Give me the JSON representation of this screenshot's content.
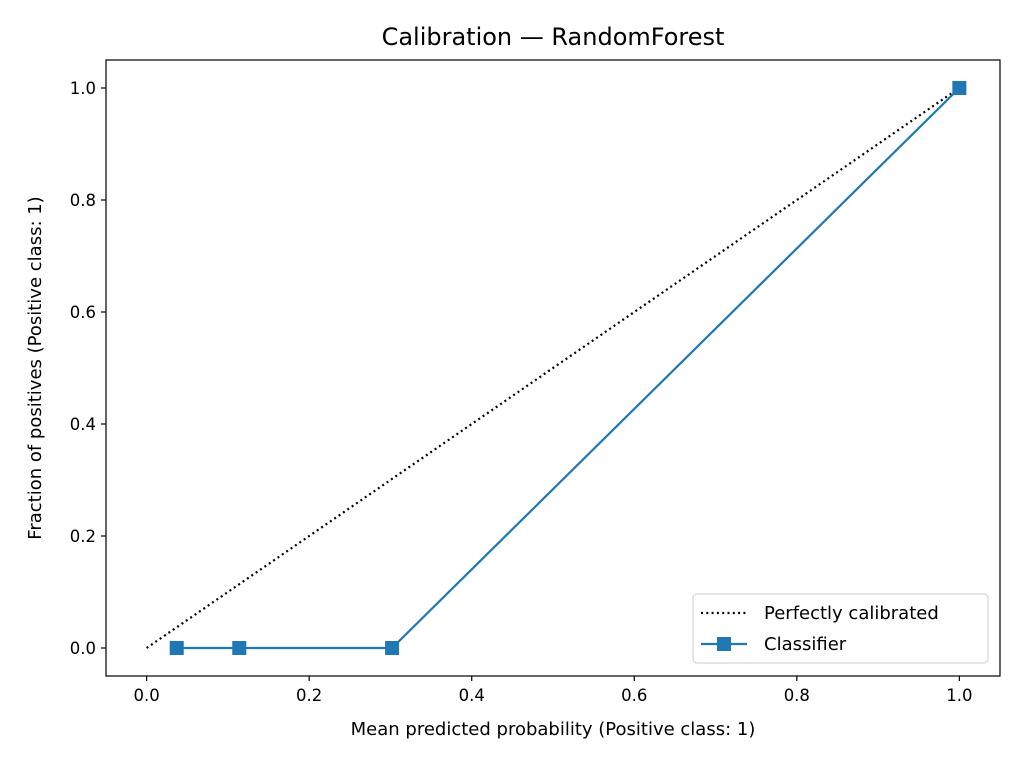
{
  "chart_data": {
    "type": "line",
    "title": "Calibration — RandomForest",
    "xlabel": "Mean predicted probability (Positive class: 1)",
    "ylabel": "Fraction of positives (Positive class: 1)",
    "xlim": [
      -0.05,
      1.05
    ],
    "ylim": [
      -0.05,
      1.05
    ],
    "xticks": [
      0.0,
      0.2,
      0.4,
      0.6,
      0.8,
      1.0
    ],
    "yticks": [
      0.0,
      0.2,
      0.4,
      0.6,
      0.8,
      1.0
    ],
    "xtick_labels": [
      "0.0",
      "0.2",
      "0.4",
      "0.6",
      "0.8",
      "1.0"
    ],
    "ytick_labels": [
      "0.0",
      "0.2",
      "0.4",
      "0.6",
      "0.8",
      "1.0"
    ],
    "grid": false,
    "legend_position": "lower-right",
    "series": [
      {
        "name": "Perfectly calibrated",
        "style": "dotted",
        "color": "#000000",
        "marker": "none",
        "x": [
          0.0,
          1.0
        ],
        "y": [
          0.0,
          1.0
        ]
      },
      {
        "name": "Classifier",
        "style": "solid",
        "color": "#1f77b4",
        "marker": "square",
        "x": [
          0.037,
          0.114,
          0.302,
          1.0
        ],
        "y": [
          0.0,
          0.0,
          0.0,
          1.0
        ]
      }
    ]
  }
}
